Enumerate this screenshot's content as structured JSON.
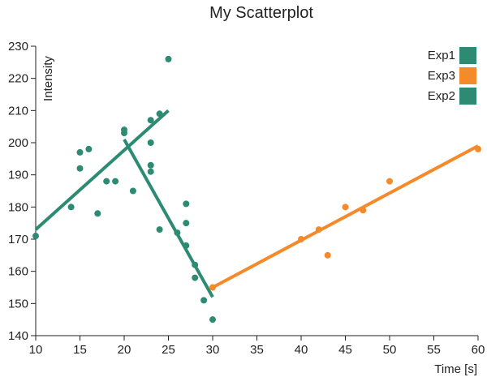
{
  "chart_data": {
    "type": "scatter",
    "title": "My Scatterplot",
    "xlabel": "Time [s]",
    "ylabel": "Intensity",
    "xlim": [
      10,
      60
    ],
    "ylim": [
      140,
      230
    ],
    "xticks": [
      10,
      15,
      20,
      25,
      30,
      35,
      40,
      45,
      50,
      55,
      60
    ],
    "yticks": [
      140,
      150,
      160,
      170,
      180,
      190,
      200,
      210,
      220,
      230
    ],
    "grid": false,
    "legend_position": "top-right",
    "legend_order": [
      "Exp1",
      "Exp3",
      "Exp2"
    ],
    "series": [
      {
        "name": "Exp1",
        "color": "#2e8b73",
        "points": [
          [
            10,
            171
          ],
          [
            14,
            180
          ],
          [
            15,
            197
          ],
          [
            15,
            192
          ],
          [
            16,
            198
          ],
          [
            17,
            178
          ],
          [
            18,
            188
          ],
          [
            19,
            188
          ],
          [
            20,
            203
          ],
          [
            21,
            185
          ],
          [
            23,
            207
          ],
          [
            24,
            209
          ],
          [
            25,
            226
          ]
        ],
        "trendline": [
          [
            10,
            173
          ],
          [
            25,
            210
          ]
        ]
      },
      {
        "name": "Exp3",
        "color": "#f58a2a",
        "points": [
          [
            30,
            155
          ],
          [
            40,
            170
          ],
          [
            42,
            173
          ],
          [
            43,
            165
          ],
          [
            45,
            180
          ],
          [
            47,
            179
          ],
          [
            50,
            188
          ],
          [
            60,
            198
          ]
        ],
        "trendline": [
          [
            30,
            155
          ],
          [
            60,
            199
          ]
        ]
      },
      {
        "name": "Exp2",
        "color": "#2e8b73",
        "points": [
          [
            20,
            204
          ],
          [
            23,
            200
          ],
          [
            23,
            193
          ],
          [
            23,
            191
          ],
          [
            24,
            173
          ],
          [
            26,
            172
          ],
          [
            27,
            181
          ],
          [
            27,
            175
          ],
          [
            27,
            168
          ],
          [
            28,
            162
          ],
          [
            28,
            158
          ],
          [
            29,
            151
          ],
          [
            30,
            145
          ]
        ],
        "trendline": [
          [
            20,
            201
          ],
          [
            30,
            152
          ]
        ]
      }
    ]
  }
}
